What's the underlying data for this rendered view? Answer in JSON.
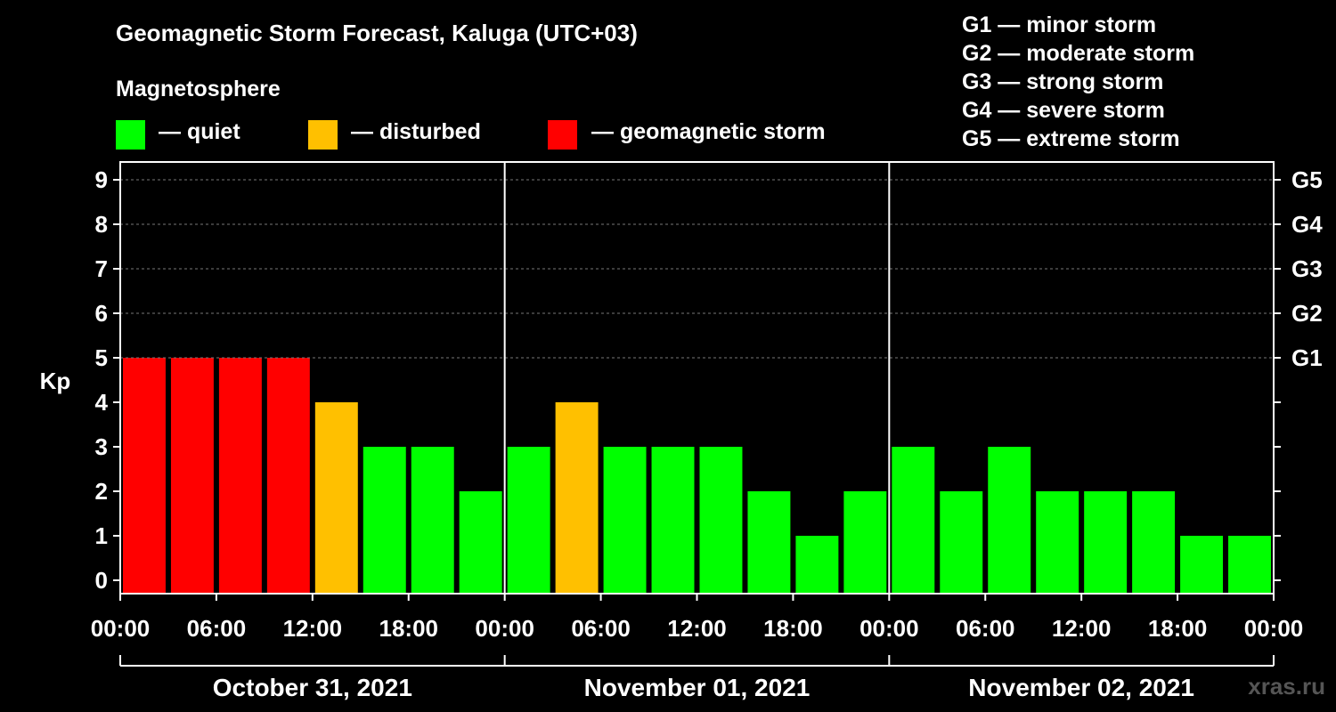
{
  "title": "Geomagnetic Storm Forecast, Kaluga (UTC+03)",
  "subtitle": "Magnetosphere",
  "legend": [
    {
      "label": "— quiet",
      "color": "#00ff00"
    },
    {
      "label": "— disturbed",
      "color": "#ffc000"
    },
    {
      "label": "— geomagnetic storm",
      "color": "#ff0000"
    }
  ],
  "g_scale": [
    "G1 — minor storm",
    "G2 — moderate storm",
    "G3 — strong storm",
    "G4 — severe storm",
    "G5 — extreme storm"
  ],
  "watermark": "xras.ru",
  "chart_data": {
    "type": "bar",
    "title": "Geomagnetic Storm Forecast, Kaluga (UTC+03)",
    "ylabel": "Kp",
    "ylim": [
      0,
      9
    ],
    "yticks": [
      "0",
      "1",
      "2",
      "3",
      "4",
      "5",
      "6",
      "7",
      "8",
      "9"
    ],
    "right_ticks": [
      {
        "kp": 5,
        "label": "G1"
      },
      {
        "kp": 6,
        "label": "G2"
      },
      {
        "kp": 7,
        "label": "G3"
      },
      {
        "kp": 8,
        "label": "G4"
      },
      {
        "kp": 9,
        "label": "G5"
      }
    ],
    "xtick_labels": [
      "00:00",
      "06:00",
      "12:00",
      "18:00",
      "00:00",
      "06:00",
      "12:00",
      "18:00",
      "00:00",
      "06:00",
      "12:00",
      "18:00",
      "00:00"
    ],
    "days": [
      "October 31, 2021",
      "November 01, 2021",
      "November 02, 2021"
    ],
    "interval_hours": 3,
    "values": [
      5,
      5,
      5,
      5,
      4,
      3,
      3,
      2,
      3,
      4,
      3,
      3,
      3,
      2,
      1,
      2,
      3,
      2,
      3,
      2,
      2,
      2,
      1,
      1
    ],
    "colors": {
      "quiet": "#00ff00",
      "disturbed": "#ffc000",
      "storm": "#ff0000"
    },
    "gridlines": [
      5,
      6,
      7,
      8,
      9
    ]
  }
}
